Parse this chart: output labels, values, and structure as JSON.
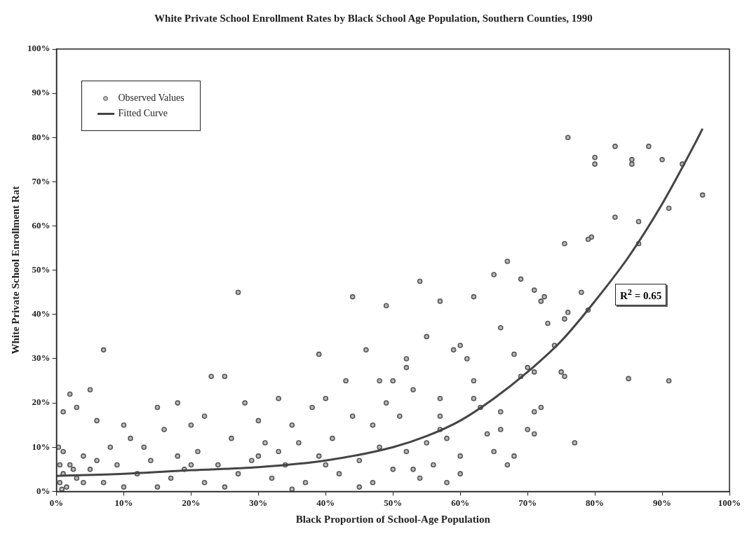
{
  "chart_data": {
    "type": "scatter",
    "title": "White Private School Enrollment Rates by Black School Age Population, Southern Counties, 1990",
    "xlabel": "Black Proportion of School-Age Population",
    "ylabel": "White Private School Enrollment Rat",
    "xlim": [
      0,
      100
    ],
    "ylim": [
      0,
      100
    ],
    "xticks": [
      {
        "value": 0,
        "label": "0%"
      },
      {
        "value": 10,
        "label": "10%"
      },
      {
        "value": 20,
        "label": "20%"
      },
      {
        "value": 30,
        "label": "30%"
      },
      {
        "value": 40,
        "label": "40%"
      },
      {
        "value": 50,
        "label": "50%"
      },
      {
        "value": 60,
        "label": "60%"
      },
      {
        "value": 70,
        "label": "70%"
      },
      {
        "value": 80,
        "label": "80%"
      },
      {
        "value": 90,
        "label": "90%"
      },
      {
        "value": 100,
        "label": "100%"
      }
    ],
    "yticks": [
      {
        "value": 0,
        "label": "0%"
      },
      {
        "value": 10,
        "label": "10%"
      },
      {
        "value": 20,
        "label": "20%"
      },
      {
        "value": 30,
        "label": "30%"
      },
      {
        "value": 40,
        "label": "40%"
      },
      {
        "value": 50,
        "label": "50%"
      },
      {
        "value": 60,
        "label": "60%"
      },
      {
        "value": 70,
        "label": "70%"
      },
      {
        "value": 80,
        "label": "80%"
      },
      {
        "value": 90,
        "label": "90%"
      },
      {
        "value": 100,
        "label": "100%"
      }
    ],
    "grid": false,
    "legend": "top left",
    "annotations": [
      "R$^{2}$ = 0.65"
    ],
    "series": [
      {
        "name": "Observed Values",
        "marker": "circle",
        "color": "#555555",
        "x": [
          76,
          80,
          80,
          83,
          85.5,
          85.5,
          88,
          90,
          93,
          96,
          91,
          83,
          86.5,
          86.5,
          79.5,
          79,
          75.5,
          78,
          79,
          76,
          75.5,
          72.5,
          72,
          71,
          69,
          67,
          65,
          62,
          57,
          54,
          49,
          44,
          27,
          7,
          39,
          85,
          91,
          77,
          66,
          73,
          74,
          75,
          75.5,
          71,
          70,
          68,
          69,
          72,
          66,
          66,
          65,
          67,
          68,
          71,
          71,
          70,
          60,
          61,
          59,
          62,
          55,
          52,
          50,
          52,
          53,
          57,
          57,
          58,
          60,
          60,
          56,
          54,
          53,
          48,
          46,
          43,
          40,
          38,
          33,
          28,
          25,
          23,
          20,
          18,
          15,
          10,
          5,
          2,
          1,
          3,
          6,
          11,
          16,
          22,
          30,
          35,
          44,
          47,
          49,
          51,
          36,
          31,
          26,
          21,
          13,
          8,
          4,
          2,
          1,
          0.5,
          1,
          3,
          5,
          7,
          9,
          12,
          14,
          17,
          19,
          22,
          24,
          27,
          29,
          32,
          34,
          37,
          39,
          42,
          45,
          47,
          50,
          52,
          55,
          57,
          58,
          62,
          63,
          64,
          48,
          41,
          33,
          18,
          10,
          6,
          0.3,
          0.5,
          1.5,
          2.5,
          4,
          0.8,
          15,
          25,
          35,
          45,
          40,
          30,
          20
        ],
        "values": [
          80,
          75.5,
          74,
          78,
          75,
          74,
          78,
          75,
          74,
          67,
          64,
          62,
          61,
          56,
          57.5,
          57,
          56,
          45,
          41,
          40.5,
          39,
          44,
          43,
          45.5,
          48,
          52,
          49,
          44,
          43,
          47.5,
          42,
          44,
          45,
          32,
          31,
          25.5,
          25,
          11,
          37,
          38,
          33,
          27,
          26,
          27,
          28,
          31,
          26,
          19,
          18,
          14,
          9,
          6,
          8,
          13,
          18,
          14,
          33,
          30,
          32,
          25,
          35,
          30,
          25,
          28,
          23,
          21,
          17,
          12,
          8,
          4,
          6,
          3,
          5,
          25,
          32,
          25,
          21,
          19,
          21,
          20,
          26,
          26,
          15,
          20,
          19,
          15,
          23,
          22,
          18,
          19,
          16,
          12,
          14,
          17,
          16,
          15,
          17,
          15,
          20,
          17,
          11,
          11,
          12,
          9,
          10,
          10,
          8,
          6,
          4,
          2,
          9,
          3,
          5,
          2,
          6,
          4,
          7,
          3,
          5,
          2,
          6,
          4,
          7,
          3,
          6,
          2,
          8,
          4,
          7,
          2,
          5,
          9,
          11,
          14,
          2,
          21,
          19,
          13,
          10,
          12,
          9,
          8,
          1,
          7,
          10,
          6,
          1,
          5,
          2,
          0.5,
          1,
          1,
          0.5,
          1,
          6,
          8,
          6
        ]
      },
      {
        "name": "Fitted Curve",
        "type": "line",
        "marker": "none",
        "color": "#444444",
        "x": [
          0,
          10,
          20,
          30,
          40,
          50,
          55,
          60,
          65,
          70,
          75,
          80,
          85,
          90,
          95,
          96
        ],
        "values": [
          3.5,
          4,
          4.8,
          5.5,
          7,
          10,
          12.5,
          16,
          21,
          27,
          34,
          43,
          53,
          65,
          79,
          82
        ]
      }
    ]
  }
}
